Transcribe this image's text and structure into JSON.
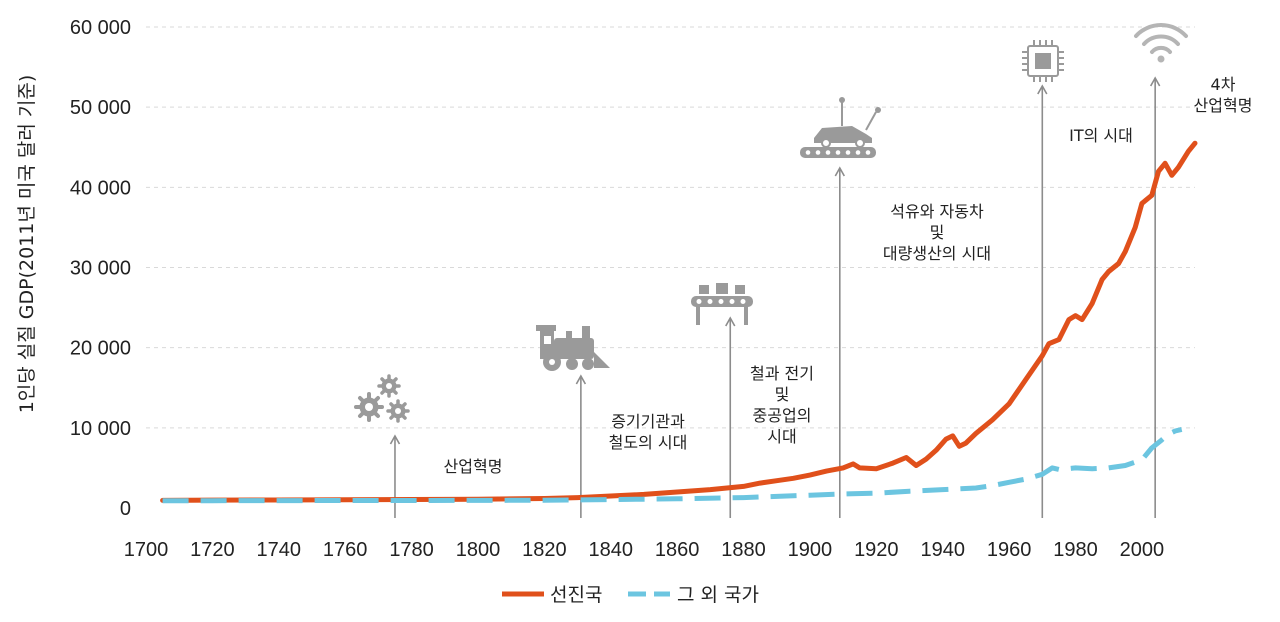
{
  "chart_data": {
    "type": "line",
    "title": "",
    "xlabel": "",
    "ylabel": "1인당 실질 GDP(2011년 미국 달러 기준)",
    "xlim": [
      1700,
      2016
    ],
    "ylim": [
      0,
      60000
    ],
    "x_ticks": [
      "1700",
      "1720",
      "1740",
      "1760",
      "1780",
      "1800",
      "1820",
      "1840",
      "1860",
      "1880",
      "1900",
      "1920",
      "1940",
      "1960",
      "1980",
      "2000"
    ],
    "y_ticks": [
      "0",
      "10 000",
      "20 000",
      "30 000",
      "40 000",
      "50 000",
      "60 000"
    ],
    "grid": "horizontal dashed",
    "legend_position": "bottom-center",
    "series": [
      {
        "name": "선진국",
        "color": "#e0501b",
        "style": "solid",
        "points": [
          [
            1705,
            950
          ],
          [
            1720,
            980
          ],
          [
            1740,
            1000
          ],
          [
            1760,
            1030
          ],
          [
            1780,
            1060
          ],
          [
            1800,
            1100
          ],
          [
            1820,
            1180
          ],
          [
            1830,
            1300
          ],
          [
            1840,
            1500
          ],
          [
            1850,
            1700
          ],
          [
            1860,
            2000
          ],
          [
            1870,
            2300
          ],
          [
            1880,
            2700
          ],
          [
            1885,
            3100
          ],
          [
            1890,
            3400
          ],
          [
            1895,
            3700
          ],
          [
            1900,
            4100
          ],
          [
            1905,
            4600
          ],
          [
            1910,
            5000
          ],
          [
            1913,
            5500
          ],
          [
            1915,
            5000
          ],
          [
            1920,
            4900
          ],
          [
            1925,
            5600
          ],
          [
            1929,
            6300
          ],
          [
            1932,
            5300
          ],
          [
            1935,
            6100
          ],
          [
            1938,
            7200
          ],
          [
            1941,
            8600
          ],
          [
            1943,
            9000
          ],
          [
            1945,
            7700
          ],
          [
            1947,
            8100
          ],
          [
            1950,
            9300
          ],
          [
            1955,
            11000
          ],
          [
            1960,
            13000
          ],
          [
            1965,
            16000
          ],
          [
            1970,
            19000
          ],
          [
            1972,
            20500
          ],
          [
            1975,
            21000
          ],
          [
            1978,
            23500
          ],
          [
            1980,
            24000
          ],
          [
            1982,
            23500
          ],
          [
            1985,
            25500
          ],
          [
            1988,
            28500
          ],
          [
            1990,
            29500
          ],
          [
            1993,
            30500
          ],
          [
            1995,
            32000
          ],
          [
            1998,
            35000
          ],
          [
            2000,
            38000
          ],
          [
            2003,
            39000
          ],
          [
            2005,
            42000
          ],
          [
            2007,
            43000
          ],
          [
            2009,
            41500
          ],
          [
            2011,
            42500
          ],
          [
            2014,
            44500
          ],
          [
            2016,
            45500
          ]
        ]
      },
      {
        "name": "그 외 국가",
        "color": "#6cc5e0",
        "style": "dashed",
        "points": [
          [
            1705,
            900
          ],
          [
            1720,
            910
          ],
          [
            1740,
            920
          ],
          [
            1760,
            930
          ],
          [
            1780,
            940
          ],
          [
            1800,
            950
          ],
          [
            1820,
            970
          ],
          [
            1840,
            1050
          ],
          [
            1860,
            1150
          ],
          [
            1880,
            1300
          ],
          [
            1900,
            1600
          ],
          [
            1910,
            1750
          ],
          [
            1920,
            1850
          ],
          [
            1930,
            2100
          ],
          [
            1940,
            2300
          ],
          [
            1950,
            2500
          ],
          [
            1955,
            2800
          ],
          [
            1960,
            3200
          ],
          [
            1965,
            3600
          ],
          [
            1970,
            4200
          ],
          [
            1973,
            5000
          ],
          [
            1975,
            4800
          ],
          [
            1980,
            5000
          ],
          [
            1985,
            4900
          ],
          [
            1990,
            5000
          ],
          [
            1995,
            5300
          ],
          [
            2000,
            6000
          ],
          [
            2003,
            7500
          ],
          [
            2006,
            8500
          ],
          [
            2008,
            9200
          ],
          [
            2010,
            9600
          ],
          [
            2012,
            9800
          ]
        ]
      }
    ],
    "annotations": [
      {
        "year": 1775,
        "label_lines": [
          "산업혁명"
        ],
        "icon": "gears-icon"
      },
      {
        "year": 1831,
        "label_lines": [
          "증기기관과",
          "철도의 시대"
        ],
        "icon": "steam-locomotive-icon"
      },
      {
        "year": 1876,
        "label_lines": [
          "철과 전기",
          "및",
          "중공업의",
          "시대"
        ],
        "icon": "assembly-line-icon"
      },
      {
        "year": 1909,
        "label_lines": [
          "석유와 자동차",
          "및",
          "대량생산의 시대"
        ],
        "icon": "car-factory-icon"
      },
      {
        "year": 1970,
        "label_lines": [
          "IT의 시대"
        ],
        "icon": "microchip-icon"
      },
      {
        "year": 2004,
        "label_lines": [
          "4차",
          "산업혁명"
        ],
        "icon": "wifi-icon"
      }
    ]
  }
}
